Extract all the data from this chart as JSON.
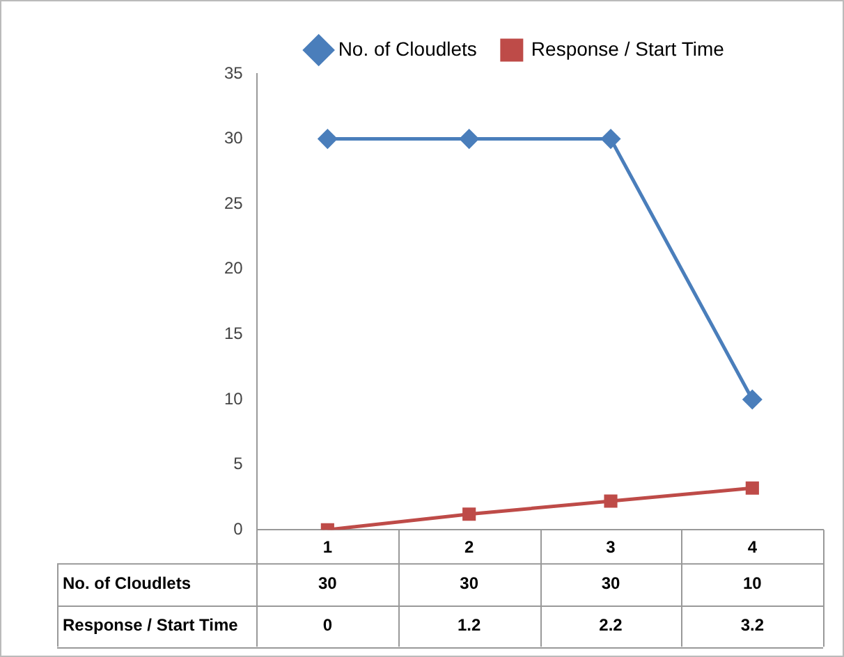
{
  "chart_data": {
    "type": "line",
    "categories": [
      "1",
      "2",
      "3",
      "4"
    ],
    "series": [
      {
        "name": "No. of Cloudlets",
        "color": "#4a7ebb",
        "marker": "diamond",
        "values": [
          30,
          30,
          30,
          10
        ]
      },
      {
        "name": "Response / Start Time",
        "color": "#be4b48",
        "marker": "square",
        "values": [
          0,
          1.2,
          2.2,
          3.2
        ]
      }
    ],
    "ylim": [
      0,
      35
    ],
    "yticks": [
      0,
      5,
      10,
      15,
      20,
      25,
      30,
      35
    ],
    "legend": "top",
    "data_labels": true
  }
}
